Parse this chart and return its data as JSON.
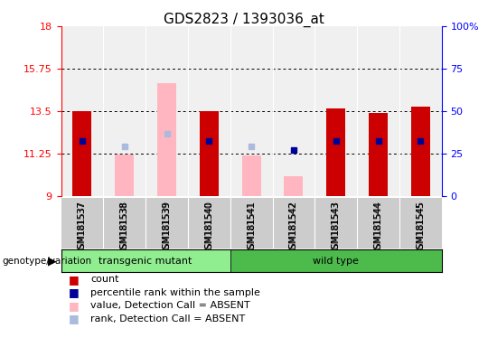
{
  "title": "GDS2823 / 1393036_at",
  "samples": [
    "GSM181537",
    "GSM181538",
    "GSM181539",
    "GSM181540",
    "GSM181541",
    "GSM181542",
    "GSM181543",
    "GSM181544",
    "GSM181545"
  ],
  "group_data": [
    {
      "label": "transgenic mutant",
      "start": 0,
      "end": 4,
      "color": "#90EE90"
    },
    {
      "label": "wild type",
      "start": 4,
      "end": 9,
      "color": "#4CBB4C"
    }
  ],
  "red_values": [
    13.5,
    null,
    null,
    13.5,
    null,
    null,
    13.65,
    13.4,
    13.72
  ],
  "pink_values": [
    null,
    11.2,
    15.0,
    null,
    11.15,
    10.05,
    null,
    null,
    null
  ],
  "blue_values": [
    11.9,
    null,
    null,
    11.9,
    null,
    11.45,
    11.9,
    11.9,
    11.9
  ],
  "light_blue_values": [
    null,
    11.62,
    12.3,
    null,
    11.62,
    null,
    null,
    null,
    null
  ],
  "ymin": 9,
  "ymax": 18,
  "yticks_left": [
    9,
    11.25,
    13.5,
    15.75,
    18
  ],
  "yticks_right_vals": [
    0,
    25,
    50,
    75,
    100
  ],
  "yticks_right_labels": [
    "0",
    "25",
    "50",
    "75",
    "100%"
  ],
  "legend_items": [
    {
      "color": "#CC0000",
      "label": "count"
    },
    {
      "color": "#000099",
      "label": "percentile rank within the sample"
    },
    {
      "color": "#FFB6C1",
      "label": "value, Detection Call = ABSENT"
    },
    {
      "color": "#AABBDD",
      "label": "rank, Detection Call = ABSENT"
    }
  ],
  "plot_bg": "#F0F0F0",
  "bar_width": 0.45,
  "title_fontsize": 11,
  "axis_label_fontsize": 8,
  "tick_fontsize": 8,
  "sample_fontsize": 7,
  "legend_fontsize": 8,
  "group_fontsize": 8
}
